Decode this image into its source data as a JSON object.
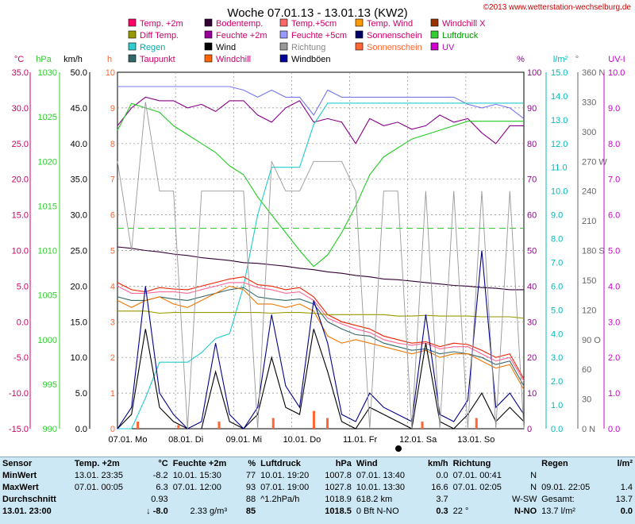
{
  "title": "Woche 07.01.13 - 13.01.13 (KW2)",
  "copyright": "©2013 www.wetterstation-wechselburg.de",
  "legend": [
    {
      "label": "Temp. +2m",
      "color": "#ff0066"
    },
    {
      "label": "Bodentemp.",
      "color": "#330033"
    },
    {
      "label": "Temp.+5cm",
      "color": "#ff6666"
    },
    {
      "label": "Temp. Wind",
      "color": "#ff9900"
    },
    {
      "label": "Windchill X",
      "color": "#993300"
    },
    {
      "label": "Diff Temp.",
      "color": "#999900"
    },
    {
      "label": "Feuchte +2m",
      "color": "#990099"
    },
    {
      "label": "Feuchte +5cm",
      "color": "#9999ff"
    },
    {
      "label": "Sonnenschein",
      "color": "#000066"
    },
    {
      "label": "Luftdruck",
      "color": "#33cc33"
    },
    {
      "label": "Regen",
      "color": "#33cccc"
    },
    {
      "label": "Wind",
      "color": "#000000"
    },
    {
      "label": "Richtung",
      "color": "#999999"
    },
    {
      "label": "Sonnenschein",
      "color": "#ff6633"
    },
    {
      "label": "UV",
      "color": "#cc00cc"
    },
    {
      "label": "Taupunkt",
      "color": "#336666"
    },
    {
      "label": "Windchill",
      "color": "#ff6600"
    },
    {
      "label": "Windböen",
      "color": "#000099"
    }
  ],
  "legend_text_colors": [
    "#cc0066",
    "#cc0066",
    "#cc0066",
    "#cc0066",
    "#cc0066",
    "#cc0066",
    "#cc0066",
    "#cc0066",
    "#cc0066",
    "#009900",
    "#00aaaa",
    "#000000",
    "#888888",
    "#ff6633",
    "#cc00cc",
    "#cc0066",
    "#cc0066",
    "#000000"
  ],
  "axis_units": {
    "temp": "°C",
    "hpa": "hPa",
    "kmh": "km/h",
    "h": "h",
    "pct": "%",
    "lm2": "l/m²",
    "deg": "°",
    "uv": "UV-I"
  },
  "chart_data": {
    "type": "line",
    "x_labels": [
      "07.01. Mo",
      "08.01. Di",
      "09.01. Mi",
      "10.01. Do",
      "11.01. Fr",
      "12.01. Sa",
      "13.01. So"
    ],
    "axes": {
      "temp": {
        "min": -15,
        "max": 35,
        "ticks": [
          "35.0",
          "30.0",
          "25.0",
          "20.0",
          "15.0",
          "10.0",
          "5.0",
          "0.0",
          "-5.0",
          "-10.0",
          "-15.0"
        ],
        "color": "#cc0066"
      },
      "hpa": {
        "min": 990,
        "max": 1030,
        "ticks": [
          "1030",
          "1025",
          "1020",
          "1015",
          "1010",
          "1005",
          "1000",
          "995",
          "990"
        ],
        "color": "#33cc33"
      },
      "kmh": {
        "min": 0,
        "max": 50,
        "ticks": [
          "50.0",
          "45.0",
          "40.0",
          "35.0",
          "30.0",
          "25.0",
          "20.0",
          "15.0",
          "10.0",
          "5.0",
          "0.0"
        ],
        "color": "#000000"
      },
      "h": {
        "min": 0,
        "max": 10,
        "ticks": [
          "10",
          "9",
          "8",
          "7",
          "6",
          "5",
          "4",
          "3",
          "2",
          "1",
          "0"
        ],
        "color": "#ff6633"
      },
      "pct": {
        "min": 0,
        "max": 100,
        "ticks": [
          "100",
          "90",
          "80",
          "70",
          "60",
          "50",
          "40",
          "30",
          "20",
          "10",
          "0"
        ],
        "color": "#990099"
      },
      "lm2": {
        "min": 0,
        "max": 15,
        "ticks": [
          "15.0",
          "14.0",
          "13.0",
          "12.0",
          "11.0",
          "10.0",
          "9.0",
          "8.0",
          "7.0",
          "6.0",
          "5.0",
          "4.0",
          "3.0",
          "2.0",
          "1.0",
          "0.0"
        ],
        "color": "#00bbbb"
      },
      "deg": {
        "min": 0,
        "max": 360,
        "ticks": [
          "360 N",
          "330",
          "300",
          "270 W",
          "240",
          "210",
          "180 S",
          "150",
          "120",
          "90 O",
          "60",
          "30",
          "0 N"
        ],
        "color": "#666666"
      },
      "uv": {
        "min": 0,
        "max": 10,
        "ticks": [
          "10.0",
          "9.0",
          "8.0",
          "7.0",
          "6.0",
          "5.0",
          "4.0",
          "3.0",
          "2.0",
          "1.0",
          "0.0"
        ],
        "color": "#cc00cc"
      }
    },
    "series": [
      {
        "name": "Feuchte +5cm",
        "axis": "pct",
        "color": "#7777ee",
        "values": [
          96,
          96,
          96,
          96,
          96,
          96,
          96,
          96,
          96,
          95,
          93,
          95,
          93,
          93,
          88,
          95,
          93,
          93,
          93,
          93,
          93,
          93,
          93,
          93,
          93,
          91,
          90,
          91,
          90,
          87
        ]
      },
      {
        "name": "Feuchte +2m",
        "axis": "pct",
        "color": "#880088",
        "values": [
          85,
          90,
          93,
          92,
          92,
          90,
          91,
          89,
          92,
          92,
          88,
          86,
          90,
          92,
          86,
          87,
          86,
          80,
          87,
          85,
          86,
          84,
          85,
          88,
          86,
          87,
          83,
          80,
          85,
          85
        ]
      },
      {
        "name": "Luftdruck",
        "axis": "hpa",
        "color": "#22cc22",
        "values": [
          1023.5,
          1026.5,
          1026,
          1025.5,
          1024,
          1023,
          1022,
          1021,
          1019.5,
          1018.5,
          1016,
          1014,
          1012,
          1010,
          1008.2,
          1009.5,
          1012,
          1015,
          1018.5,
          1020.5,
          1021.5,
          1022.5,
          1023,
          1023.5,
          1024,
          1024.5,
          1024.5,
          1024.5,
          1024.5,
          1024.5
        ]
      },
      {
        "name": "Regen",
        "axis": "lm2",
        "color": "#22cccc",
        "values": [
          0,
          0,
          1.3,
          2.8,
          2.8,
          2.8,
          3.2,
          3.8,
          4.0,
          6.0,
          9.0,
          11.0,
          11.0,
          11.0,
          12.8,
          13.7,
          13.7,
          13.7,
          13.7,
          13.7,
          13.7,
          13.7,
          13.7,
          13.7,
          13.7,
          13.7,
          13.7,
          13.7,
          13.7,
          13.7
        ]
      },
      {
        "name": "Bodentemp.",
        "axis": "temp",
        "color": "#330033",
        "values": [
          10.5,
          10.3,
          10.0,
          9.8,
          9.5,
          9.3,
          9.0,
          8.8,
          8.6,
          8.3,
          8.2,
          8.0,
          7.8,
          7.5,
          7.3,
          7.0,
          6.8,
          6.5,
          6.3,
          6.0,
          5.9,
          5.7,
          5.5,
          5.3,
          5.1,
          5.0,
          4.8,
          4.7,
          4.5,
          4.5
        ]
      },
      {
        "name": "Temp. +2m",
        "axis": "temp",
        "color": "#ee2200",
        "values": [
          5.5,
          4.5,
          4.2,
          4.8,
          4.6,
          4.5,
          5.0,
          5.5,
          6.0,
          6.3,
          5.2,
          5.0,
          4.5,
          4.8,
          3.5,
          1.0,
          0.0,
          -0.5,
          -1.0,
          -2.0,
          -2.5,
          -3.0,
          -2.8,
          -3.5,
          -3.0,
          -3.2,
          -4.0,
          -5.0,
          -4.5,
          -8.0
        ]
      },
      {
        "name": "Temp.+5cm",
        "axis": "temp",
        "color": "#ff6699",
        "values": [
          5.0,
          4.0,
          4.0,
          4.2,
          4.2,
          4.0,
          4.5,
          5.0,
          5.5,
          5.5,
          4.8,
          4.5,
          4.0,
          4.2,
          3.0,
          0.5,
          -0.3,
          -1.0,
          -1.5,
          -2.5,
          -3.0,
          -3.3,
          -3.0,
          -3.8,
          -3.5,
          -3.5,
          -4.5,
          -5.5,
          -5.0,
          -8.3
        ]
      },
      {
        "name": "Taupunkt",
        "axis": "temp",
        "color": "#336666",
        "values": [
          3.5,
          3.0,
          3.0,
          3.5,
          3.2,
          3.0,
          3.5,
          4.0,
          4.5,
          4.8,
          3.5,
          3.2,
          3.0,
          3.2,
          2.5,
          0.0,
          -1.0,
          -1.8,
          -2.0,
          -3.0,
          -3.5,
          -4.0,
          -3.8,
          -4.5,
          -4.2,
          -4.5,
          -5.0,
          -6.0,
          -5.5,
          -9.0
        ]
      },
      {
        "name": "Windchill",
        "axis": "temp",
        "color": "#ee7700",
        "values": [
          3.0,
          2.0,
          3.0,
          3.5,
          2.5,
          2.0,
          3.0,
          4.0,
          5.0,
          4.5,
          2.5,
          2.5,
          2.0,
          2.5,
          1.5,
          -2.0,
          -3.0,
          -2.5,
          -3.0,
          -3.5,
          -4.0,
          -4.5,
          -4.0,
          -5.0,
          -4.5,
          -4.5,
          -5.5,
          -6.5,
          -6.0,
          -9.5
        ]
      },
      {
        "name": "Diff Temp.",
        "axis": "temp",
        "color": "#999900",
        "values": [
          1.5,
          1.5,
          1.5,
          1.2,
          1.3,
          1.3,
          1.3,
          1.3,
          1.3,
          1.3,
          1.3,
          1.2,
          1.3,
          1.3,
          1.2,
          1.0,
          1.0,
          1.0,
          1.0,
          1.0,
          0.8,
          0.8,
          0.9,
          0.8,
          0.8,
          0.8,
          0.7,
          0.7,
          0.7,
          0.5
        ]
      },
      {
        "name": "Wind",
        "axis": "kmh",
        "color": "#000000",
        "values": [
          0,
          2,
          14,
          3,
          1,
          0,
          0,
          8,
          1,
          0,
          2,
          10,
          3,
          2,
          14,
          8,
          1,
          0,
          3,
          2,
          1,
          0,
          12,
          1,
          0,
          2,
          5,
          1,
          3,
          1
        ]
      },
      {
        "name": "Windböen",
        "axis": "kmh",
        "color": "#000088",
        "values": [
          0,
          3,
          20,
          5,
          2,
          0,
          1,
          12,
          2,
          0,
          3,
          16,
          6,
          3,
          18,
          12,
          2,
          1,
          5,
          3,
          2,
          1,
          16,
          2,
          1,
          4,
          25,
          3,
          5,
          2
        ]
      },
      {
        "name": "Richtung",
        "axis": "deg",
        "color": "#999999",
        "values": [
          270,
          180,
          330,
          240,
          240,
          0,
          240,
          240,
          240,
          240,
          0,
          270,
          240,
          240,
          270,
          270,
          270,
          240,
          0,
          240,
          240,
          0,
          240,
          0,
          240,
          0,
          240,
          0,
          240,
          0
        ]
      }
    ],
    "sunshine_bars": [
      0,
      0.2,
      0,
      0,
      0.1,
      0,
      0,
      0.2,
      0,
      0,
      0,
      0.3,
      0,
      0,
      0.5,
      0.3,
      0,
      0,
      0,
      0,
      0,
      0,
      0.2,
      0,
      0,
      0,
      0.3,
      0,
      0,
      0
    ]
  },
  "table": {
    "header": [
      "Sensor",
      "Temp. +2m",
      "°C",
      "Feuchte +2m",
      "%",
      "Luftdruck",
      "hPa",
      "Wind",
      "km/h",
      "Richtung",
      "",
      "Regen",
      "l/m²"
    ],
    "rows": [
      [
        "MinWert",
        "13.01.  23:35",
        "-8.2",
        "10.01.  15:30",
        "77",
        "10.01.  19:20",
        "1007.8",
        "07.01.  13:40",
        "0.0",
        "07.01.  00:41",
        "N",
        "",
        ""
      ],
      [
        "MaxWert",
        "07.01.  00:05",
        "6.3",
        "07.01.  12:00",
        "93",
        "07.01.  19:00",
        "1027.8",
        "10.01.  13:30",
        "16.6",
        "07.01.  02:05",
        "N",
        "09.01.  22:05",
        "1.4"
      ],
      [
        "Durchschnitt",
        "",
        "0.93",
        "",
        "88",
        "^1.2hPa/h",
        "1018.9",
        "618.2 km",
        "3.7",
        "",
        "W-SW",
        "Gesamt:",
        "13.7"
      ]
    ],
    "last": [
      "13.01.  23:00",
      "↓ -8.0",
      "2.33 g/m³",
      "85",
      "1018.5",
      "0 Bft N-NO",
      "0.3",
      "22 °",
      "N-NO",
      "13.7 l/m²",
      "0.0"
    ]
  }
}
